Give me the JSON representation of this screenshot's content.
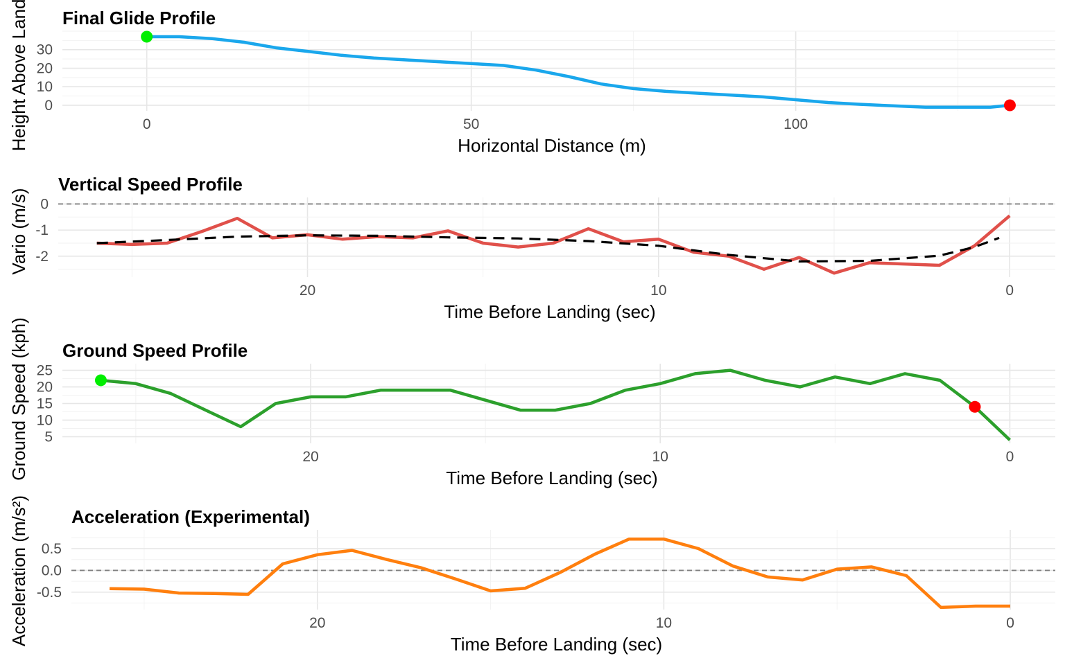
{
  "chart_data": [
    {
      "type": "line",
      "title": "Final Glide Profile",
      "xlabel": "Horizontal Distance (m)",
      "ylabel": "Height Above Landing",
      "xlim": [
        -13,
        140
      ],
      "ylim": [
        -3,
        40
      ],
      "x_ticks": [
        0,
        50,
        100
      ],
      "y_ticks": [
        0,
        10,
        20,
        30
      ],
      "reverse_x": false,
      "ref_line": null,
      "color": "#1aa7ec",
      "series": [
        {
          "x": [
            0,
            5,
            10,
            15,
            20,
            25,
            30,
            35,
            40,
            45,
            50,
            55,
            60,
            65,
            70,
            75,
            80,
            85,
            90,
            95,
            100,
            105,
            110,
            115,
            120,
            125,
            130,
            133
          ],
          "values": [
            37,
            37,
            36,
            34,
            31,
            29,
            27,
            25.5,
            24.5,
            23.5,
            22.5,
            21.5,
            19,
            15.5,
            11.5,
            9,
            7.5,
            6.5,
            5.5,
            4.5,
            3,
            1.5,
            0.5,
            -0.3,
            -1,
            -1,
            -1,
            0
          ]
        }
      ],
      "points": [
        {
          "x": 0,
          "y": 37,
          "color": "#00ee00"
        },
        {
          "x": 133,
          "y": 0,
          "color": "#ff0000"
        }
      ]
    },
    {
      "type": "line",
      "title": "Vertical Speed Profile",
      "xlabel": "Time Before Landing (sec)",
      "ylabel": "Vario (m/s)",
      "xlim": [
        27.1,
        -1.3
      ],
      "ylim": [
        -2.8,
        0.25
      ],
      "x_ticks": [
        20,
        10,
        0
      ],
      "y_ticks": [
        0,
        -1,
        -2
      ],
      "reverse_x": true,
      "ref_line": 0,
      "color": "#e0504a",
      "series": [
        {
          "x": [
            26,
            25,
            24,
            23,
            22,
            21,
            20,
            19,
            18,
            17,
            16,
            15,
            14,
            13,
            12,
            11,
            10,
            9,
            8,
            7,
            6,
            5,
            4,
            3,
            2,
            1,
            0
          ],
          "values": [
            -1.5,
            -1.55,
            -1.5,
            -1.05,
            -0.55,
            -1.3,
            -1.18,
            -1.35,
            -1.25,
            -1.3,
            -1.03,
            -1.5,
            -1.65,
            -1.5,
            -0.95,
            -1.45,
            -1.35,
            -1.85,
            -2.0,
            -2.5,
            -2.05,
            -2.65,
            -2.25,
            -2.3,
            -2.35,
            -1.6,
            -0.45
          ]
        },
        {
          "x": [
            26,
            24,
            22,
            20,
            18,
            16,
            14,
            12,
            10,
            8,
            6,
            4,
            2,
            1,
            0.3
          ],
          "values": [
            -1.5,
            -1.38,
            -1.25,
            -1.2,
            -1.22,
            -1.28,
            -1.32,
            -1.42,
            -1.6,
            -1.95,
            -2.2,
            -2.18,
            -1.98,
            -1.65,
            -1.3
          ],
          "dashed": true
        }
      ],
      "points": []
    },
    {
      "type": "line",
      "title": "Ground Speed Profile",
      "xlabel": "Time Before Landing (sec)",
      "ylabel": "Ground Speed (kph)",
      "xlim": [
        27.1,
        -1.3
      ],
      "ylim": [
        3,
        27
      ],
      "x_ticks": [
        20,
        10,
        0
      ],
      "y_ticks": [
        5,
        10,
        15,
        20,
        25
      ],
      "reverse_x": true,
      "ref_line": null,
      "color": "#2ca02c",
      "series": [
        {
          "x": [
            26,
            25,
            24,
            23,
            22,
            21,
            20,
            19,
            18,
            17,
            16,
            15,
            14,
            13,
            12,
            11,
            10,
            9,
            8,
            7,
            6,
            5,
            4,
            3,
            2,
            1,
            0
          ],
          "values": [
            22,
            21,
            18,
            13,
            8,
            15,
            17,
            17,
            19,
            19,
            19,
            16,
            13,
            13,
            15,
            19,
            21,
            24,
            25,
            22,
            20,
            23,
            21,
            24,
            22,
            14,
            4
          ]
        }
      ],
      "points": [
        {
          "x": 26,
          "y": 22,
          "color": "#00ee00"
        },
        {
          "x": 1,
          "y": 14,
          "color": "#ff0000"
        }
      ]
    },
    {
      "type": "line",
      "title": "Acceleration (Experimental)",
      "xlabel": "Time Before Landing (sec)",
      "ylabel": "Acceleration (m/s²)",
      "xlim": [
        27.1,
        -1.3
      ],
      "ylim": [
        -0.9,
        0.93
      ],
      "x_ticks": [
        20,
        10,
        0
      ],
      "y_ticks": [
        0.5,
        0.0,
        -0.5
      ],
      "reverse_x": true,
      "ref_line": 0,
      "color": "#ff7f0e",
      "series": [
        {
          "x": [
            26,
            25,
            24,
            23,
            22,
            21,
            20,
            19,
            18,
            17,
            16,
            15,
            14,
            13,
            12,
            11,
            10,
            9,
            8,
            7,
            6,
            5,
            4,
            3,
            2,
            1,
            0
          ],
          "values": [
            -0.42,
            -0.43,
            -0.52,
            -0.53,
            -0.55,
            0.15,
            0.36,
            0.46,
            0.25,
            0.06,
            -0.2,
            -0.47,
            -0.41,
            -0.05,
            0.37,
            0.72,
            0.72,
            0.5,
            0.1,
            -0.15,
            -0.22,
            0.03,
            0.08,
            -0.12,
            -0.85,
            -0.82,
            -0.82
          ]
        }
      ],
      "points": []
    }
  ]
}
